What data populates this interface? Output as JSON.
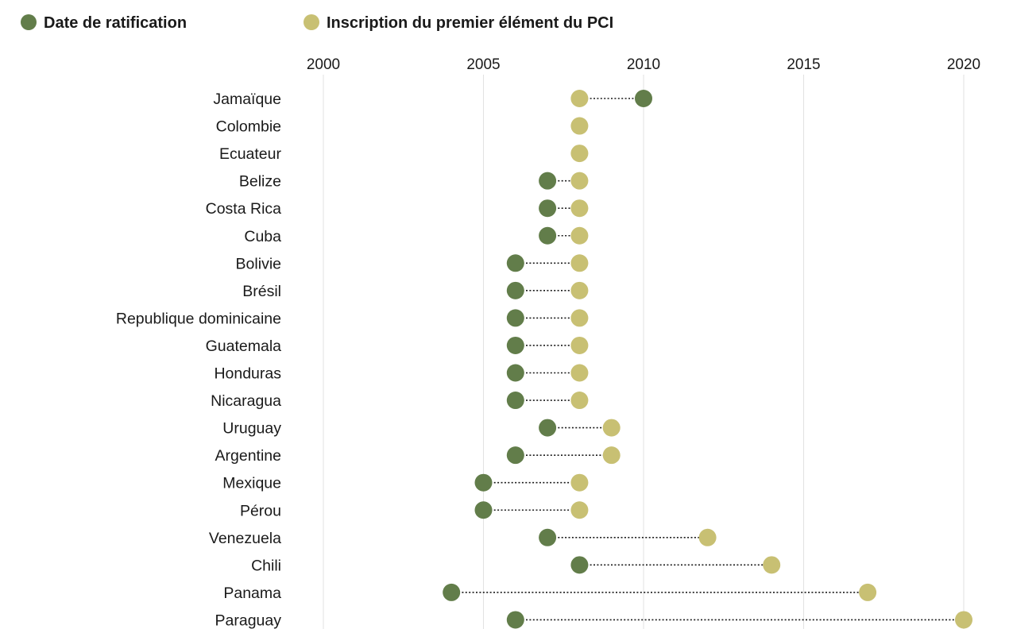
{
  "chart_data": {
    "type": "dumbbell",
    "legend": [
      {
        "label": "Date de ratification",
        "color": "#627d4a"
      },
      {
        "label": "Inscription du premier élément du PCI",
        "color": "#c8c073"
      }
    ],
    "legend_position": "top-left",
    "x_axis": {
      "range": [
        2000,
        2020
      ],
      "ticks": [
        "2000",
        "2005",
        "2010",
        "2015",
        "2020"
      ],
      "position": "top",
      "grid": true
    },
    "series_names": [
      "Date de ratification",
      "Inscription du premier élément du PCI"
    ],
    "rows": [
      {
        "country": "Jamaïque",
        "ratification": 2010.0,
        "inscription": 2008.0
      },
      {
        "country": "Colombie",
        "ratification": 2008.0,
        "inscription": 2008.0
      },
      {
        "country": "Ecuateur",
        "ratification": 2008.0,
        "inscription": 2008.0
      },
      {
        "country": "Belize",
        "ratification": 2007.0,
        "inscription": 2008.0
      },
      {
        "country": "Costa Rica",
        "ratification": 2007.0,
        "inscription": 2008.0
      },
      {
        "country": "Cuba",
        "ratification": 2007.0,
        "inscription": 2008.0
      },
      {
        "country": "Bolivie",
        "ratification": 2006.0,
        "inscription": 2008.0
      },
      {
        "country": "Brésil",
        "ratification": 2006.0,
        "inscription": 2008.0
      },
      {
        "country": "Republique dominicaine",
        "ratification": 2006.0,
        "inscription": 2008.0
      },
      {
        "country": "Guatemala",
        "ratification": 2006.0,
        "inscription": 2008.0
      },
      {
        "country": "Honduras",
        "ratification": 2006.0,
        "inscription": 2008.0
      },
      {
        "country": "Nicaragua",
        "ratification": 2006.0,
        "inscription": 2008.0
      },
      {
        "country": "Uruguay",
        "ratification": 2007.0,
        "inscription": 2009.0
      },
      {
        "country": "Argentine",
        "ratification": 2006.0,
        "inscription": 2009.0
      },
      {
        "country": "Mexique",
        "ratification": 2005.0,
        "inscription": 2008.0
      },
      {
        "country": "Pérou",
        "ratification": 2005.0,
        "inscription": 2008.0
      },
      {
        "country": "Venezuela",
        "ratification": 2007.0,
        "inscription": 2012.0
      },
      {
        "country": "Chili",
        "ratification": 2008.0,
        "inscription": 2014.0
      },
      {
        "country": "Panama",
        "ratification": 2004.0,
        "inscription": 2017.0
      },
      {
        "country": "Paraguay",
        "ratification": 2006.0,
        "inscription": 2020.0
      }
    ]
  }
}
